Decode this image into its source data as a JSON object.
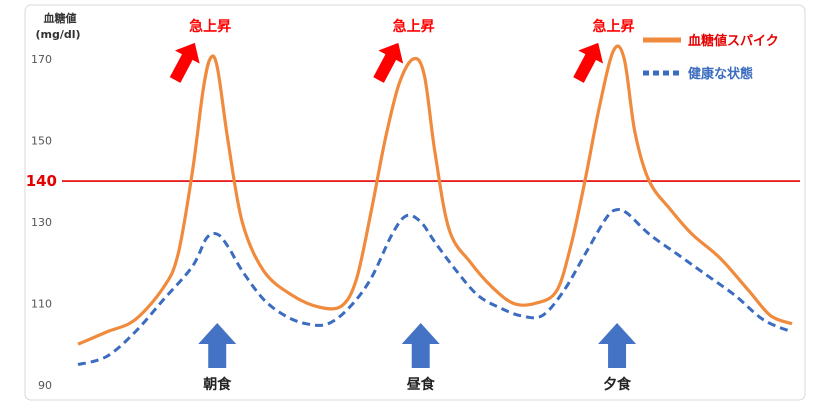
{
  "chart_data": {
    "type": "line",
    "ylabel_line1": "血糖値",
    "ylabel_line2": "(mg/dl)",
    "ylim": [
      90,
      180
    ],
    "yticks": [
      90,
      110,
      130,
      150,
      170
    ],
    "threshold": {
      "value": 140,
      "label": "140",
      "color": "#e60000"
    },
    "grid": false,
    "legend_position": "top-right",
    "x_range": [
      0,
      100
    ],
    "series": [
      {
        "name": "血糖値スパイク",
        "style": "solid",
        "color": "#f08a3c",
        "points": [
          [
            0,
            100
          ],
          [
            4,
            103
          ],
          [
            8,
            106
          ],
          [
            12,
            114
          ],
          [
            14,
            122
          ],
          [
            16,
            142
          ],
          [
            17.5,
            162
          ],
          [
            18.5,
            170
          ],
          [
            19.5,
            168
          ],
          [
            21,
            150
          ],
          [
            23,
            130
          ],
          [
            26,
            118
          ],
          [
            30,
            112
          ],
          [
            34,
            109
          ],
          [
            37,
            109.5
          ],
          [
            39,
            116
          ],
          [
            41,
            132
          ],
          [
            43,
            150
          ],
          [
            45,
            164
          ],
          [
            47,
            170
          ],
          [
            48.5,
            166
          ],
          [
            50,
            147
          ],
          [
            52,
            128
          ],
          [
            55,
            120
          ],
          [
            58,
            114
          ],
          [
            61,
            110
          ],
          [
            64,
            110
          ],
          [
            67,
            113
          ],
          [
            69,
            124
          ],
          [
            71,
            140
          ],
          [
            73,
            158
          ],
          [
            75,
            172
          ],
          [
            76.5,
            170
          ],
          [
            78,
            152
          ],
          [
            80,
            140
          ],
          [
            83,
            133
          ],
          [
            86,
            127
          ],
          [
            90,
            121
          ],
          [
            94,
            113
          ],
          [
            97,
            107
          ],
          [
            100,
            105
          ]
        ]
      },
      {
        "name": "健康な状態",
        "style": "dotted",
        "color": "#3b6cbf",
        "points": [
          [
            0,
            95
          ],
          [
            4,
            97
          ],
          [
            8,
            103
          ],
          [
            12,
            111
          ],
          [
            16,
            119
          ],
          [
            18,
            126
          ],
          [
            19.5,
            127
          ],
          [
            21,
            124
          ],
          [
            23,
            118
          ],
          [
            26,
            111
          ],
          [
            29,
            107
          ],
          [
            32,
            105
          ],
          [
            35,
            105
          ],
          [
            38,
            109
          ],
          [
            41,
            116
          ],
          [
            44,
            127
          ],
          [
            46,
            131.5
          ],
          [
            48,
            130
          ],
          [
            50,
            125
          ],
          [
            53,
            118
          ],
          [
            56,
            112
          ],
          [
            59,
            109
          ],
          [
            62,
            107
          ],
          [
            65,
            107
          ],
          [
            68,
            113
          ],
          [
            71,
            122
          ],
          [
            74,
            131
          ],
          [
            75.5,
            133
          ],
          [
            77,
            132
          ],
          [
            80,
            127
          ],
          [
            84,
            122
          ],
          [
            88,
            117
          ],
          [
            92,
            112
          ],
          [
            96,
            106
          ],
          [
            100,
            103
          ]
        ]
      }
    ],
    "annotations": {
      "spike_label": "急上昇",
      "spike_positions": [
        18.5,
        47,
        75
      ],
      "meals": [
        {
          "label": "朝食",
          "x": 19.5
        },
        {
          "label": "昼食",
          "x": 48
        },
        {
          "label": "夕食",
          "x": 75.5
        }
      ]
    }
  },
  "colors": {
    "spike": "#f08a3c",
    "healthy": "#3b6cbf",
    "threshold": "#e60000",
    "arrow_up_red": "#ff0000",
    "meal_arrow": "#4472c4",
    "frame": "#d9d9d9"
  }
}
